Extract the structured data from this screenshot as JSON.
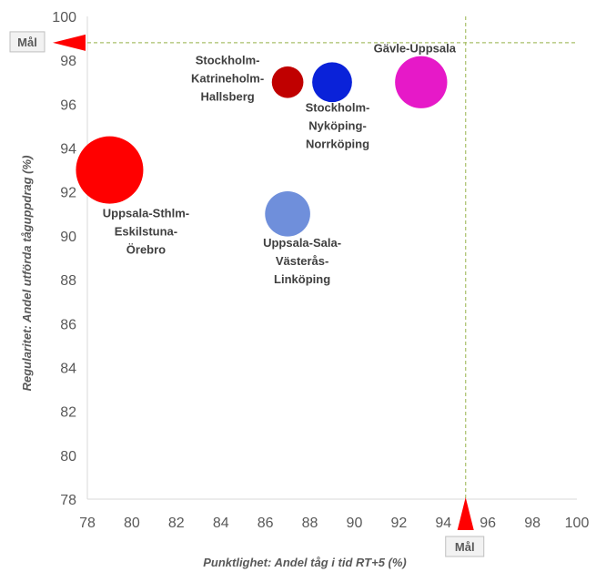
{
  "chart_data": {
    "type": "scatter",
    "subtype": "bubble",
    "xlabel": "Punktlighet: Andel tåg i tid RT+5 (%)",
    "ylabel": "Regularitet: Andel utförda tåguppdrag (%)",
    "xlim": [
      78,
      100
    ],
    "ylim": [
      78,
      100
    ],
    "x_ticks": [
      78,
      80,
      82,
      84,
      86,
      88,
      90,
      92,
      94,
      96,
      98,
      100
    ],
    "y_ticks": [
      78,
      80,
      82,
      84,
      86,
      88,
      90,
      92,
      94,
      96,
      98,
      100
    ],
    "grid": false,
    "series": [
      {
        "name": "Uppsala-Sthlm-Eskilstuna-Örebro",
        "label_lines": [
          "Uppsala-Sthlm-",
          "Eskilstuna-",
          "Örebro"
        ],
        "x": 79,
        "y": 93,
        "size": 1.0,
        "color": "#ff0000"
      },
      {
        "name": "Stockholm-Katrineholm-Hallsberg",
        "label_lines": [
          "Stockholm-",
          "Katrineholm-",
          "Hallsberg"
        ],
        "x": 87,
        "y": 97,
        "size": 0.22,
        "color": "#c00000"
      },
      {
        "name": "Stockholm-Nyköping-Norrköping",
        "label_lines": [
          "Stockholm-",
          "Nyköping-",
          "Norrköping"
        ],
        "x": 89,
        "y": 97,
        "size": 0.35,
        "color": "#0a22d9"
      },
      {
        "name": "Gävle-Uppsala",
        "label_lines": [
          "Gävle-Uppsala"
        ],
        "x": 93,
        "y": 97,
        "size": 0.6,
        "color": "#e619c8"
      },
      {
        "name": "Uppsala-Sala-Västerås-Linköping",
        "label_lines": [
          "Uppsala-Sala-",
          "Västerås-",
          "Linköping"
        ],
        "x": 87,
        "y": 91,
        "size": 0.45,
        "color": "#6f8fdb"
      }
    ],
    "targets": {
      "x": 95,
      "y": 98.8,
      "label": "Mål"
    }
  }
}
